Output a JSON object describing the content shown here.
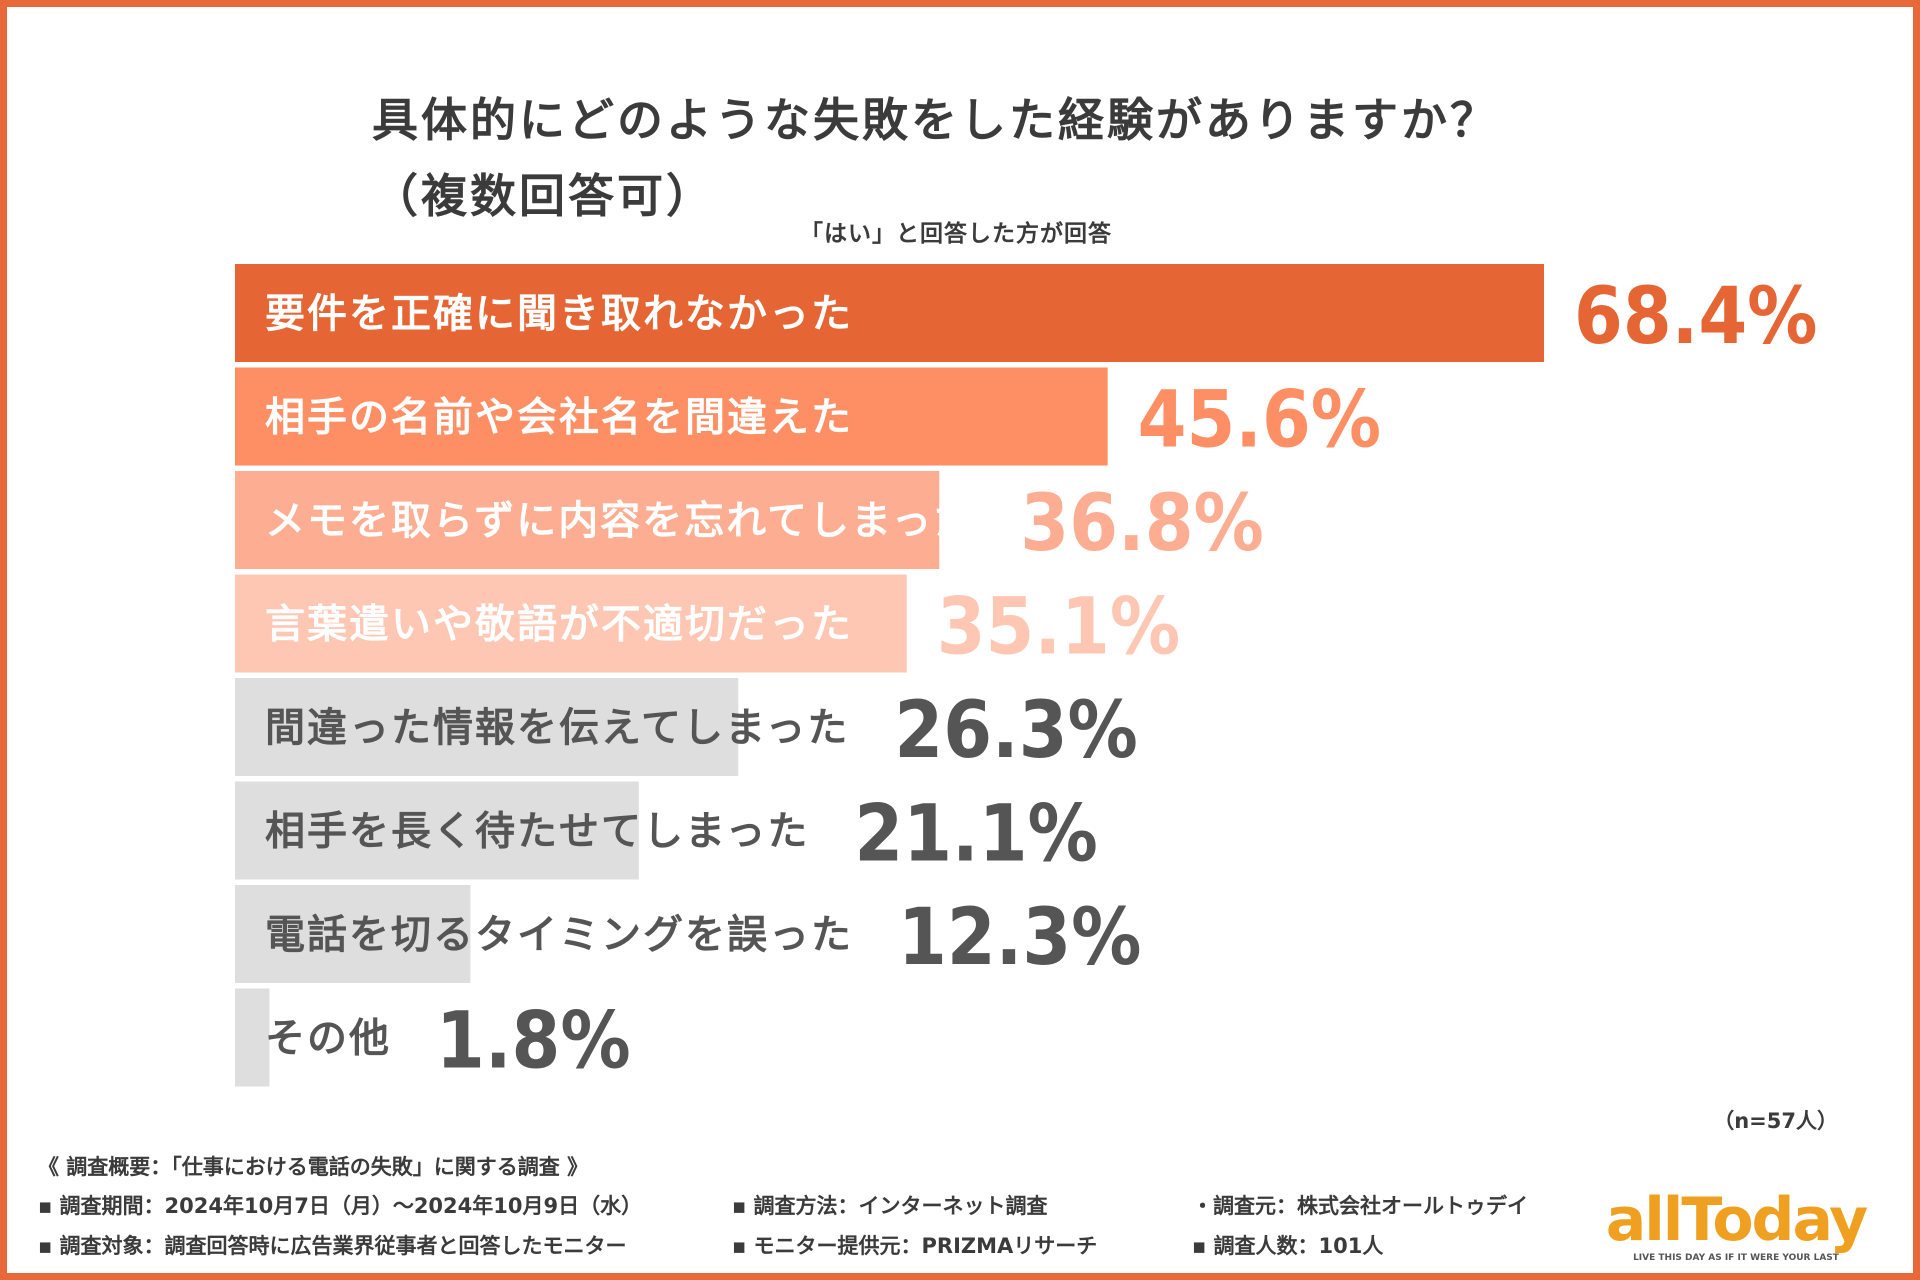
{
  "title": {
    "line1": "具体的にどのような失敗をした経験がありますか？",
    "line2": "（複数回答可）"
  },
  "subtitle": "「はい」と回答した方が回答",
  "chart_data": {
    "type": "bar",
    "orientation": "horizontal",
    "title": "具体的にどのような失敗をした経験がありますか？（複数回答可）",
    "categories": [
      "要件を正確に聞き取れなかった",
      "相手の名前や会社名を間違えた",
      "メモを取らずに内容を忘れてしまった",
      "言葉遣いや敬語が不適切だった",
      "間違った情報を伝えてしまった",
      "相手を長く待たせてしまった",
      "電話を切るタイミングを誤った",
      "その他"
    ],
    "values": [
      68.4,
      45.6,
      36.8,
      35.1,
      26.3,
      21.1,
      12.3,
      1.8
    ],
    "value_labels": [
      "68.4%",
      "45.6%",
      "36.8%",
      "35.1%",
      "26.3%",
      "21.1%",
      "12.3%",
      "1.8%"
    ],
    "unit": "%",
    "xlim": [
      0,
      70
    ],
    "bar_colors": [
      "#e56634",
      "#fe8e64",
      "#fdad91",
      "#fdc7b3",
      "#dedede",
      "#dedede",
      "#dedede",
      "#dedede"
    ],
    "label_colors": [
      "#ffffff",
      "#ffffff",
      "#ffffff",
      "#ffffff",
      "#555555",
      "#555555",
      "#555555",
      "#555555"
    ],
    "value_colors": [
      "#e56634",
      "#fe8e64",
      "#fdad91",
      "#fdc7b3",
      "#555555",
      "#555555",
      "#555555",
      "#555555"
    ]
  },
  "sample_note": "（n=57人）",
  "survey": {
    "heading": "《 調査概要：「仕事における電話の失敗」に関する調査 》",
    "period": "▪ 調査期間：2024年10月7日（月）～2024年10月9日（水）",
    "method": "▪ 調査方法：インターネット調査",
    "source": "・調査元：株式会社オールトゥデイ",
    "target": "▪ 調査対象：調査回答時に広告業界従事者と回答したモニター",
    "provider": "▪ モニター提供元：PRIZMAリサーチ",
    "count": "▪ 調査人数：101人"
  },
  "logo": {
    "text": "allToday",
    "tagline": "LIVE THIS DAY AS IF IT WERE YOUR LAST",
    "color": "#f0a020"
  }
}
